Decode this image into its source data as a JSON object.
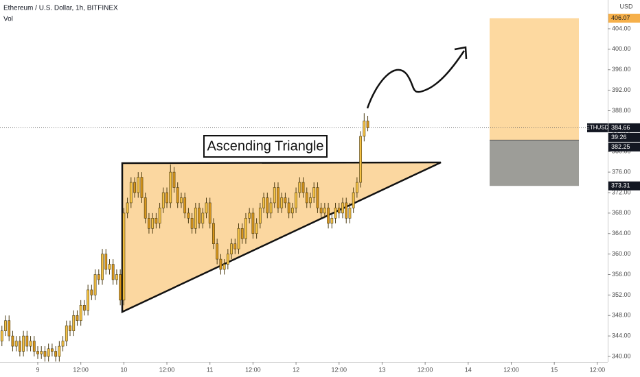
{
  "chart_data": {
    "type": "candlestick",
    "title": "Ethereum / U.S. Dollar, 1h, BITFINEX",
    "subtitle": "Vol",
    "currency": "USD",
    "annotation": "Ascending Triangle",
    "colors": {
      "up": "#f5c244",
      "down": "#d8961c",
      "wick": "#4a3a10"
    },
    "x": [
      -10,
      -9,
      -8,
      -7,
      -6,
      -5,
      -4,
      -3,
      -2,
      -1,
      0,
      1,
      2,
      3,
      4,
      5,
      6,
      7,
      8,
      9,
      10,
      11,
      12,
      13,
      14,
      15,
      16,
      17,
      18,
      19,
      20,
      21,
      22,
      23,
      24,
      25,
      26,
      27,
      28,
      29,
      30,
      31,
      32,
      33,
      34,
      35,
      36,
      37,
      38,
      39,
      40,
      41,
      42,
      43,
      44,
      45,
      46,
      47,
      48,
      49,
      50,
      51,
      52,
      53,
      54,
      55,
      56,
      57,
      58,
      59,
      60,
      61,
      62,
      63,
      64,
      65,
      66,
      67,
      68,
      69,
      70,
      71,
      72,
      73,
      74,
      75,
      76,
      77,
      78,
      79,
      80,
      81,
      82,
      83,
      84,
      85,
      86,
      87,
      88,
      89,
      90,
      91,
      92
    ],
    "open": [
      343,
      345,
      347,
      344,
      342,
      343,
      341,
      344,
      342,
      343,
      341,
      340.5,
      341,
      340,
      341.5,
      341,
      340,
      342,
      343,
      346,
      345,
      348,
      347,
      350,
      349,
      353,
      352,
      356,
      355,
      360,
      357,
      358,
      355,
      356,
      351,
      368,
      370,
      374,
      372,
      375,
      371,
      367,
      365,
      367,
      366,
      369,
      372,
      370,
      376,
      373,
      370,
      371,
      368,
      367,
      365,
      369,
      366,
      368,
      370,
      366,
      362,
      359,
      357,
      358,
      360,
      362,
      361,
      365,
      363,
      367,
      368,
      364,
      366,
      369,
      371,
      368,
      370,
      373,
      369,
      371,
      370,
      368,
      369,
      372,
      374,
      372,
      370,
      371,
      373,
      369,
      368,
      369,
      366,
      367,
      369,
      368,
      370,
      367,
      369,
      372,
      374,
      383,
      386
    ],
    "high": [
      346,
      348,
      348,
      345,
      344,
      344,
      345,
      345,
      344,
      344,
      342,
      342,
      342,
      342.5,
      342.5,
      342,
      343,
      344,
      347,
      347,
      349,
      349,
      351,
      351,
      354,
      354,
      357,
      357,
      361,
      361,
      359,
      359,
      357,
      357,
      369,
      371,
      375,
      375,
      376,
      376,
      372,
      368,
      368,
      368,
      370,
      373,
      373,
      377.5,
      377,
      374,
      372,
      372,
      369,
      368,
      370,
      370,
      369,
      371,
      371,
      367,
      363,
      360,
      359,
      361,
      363,
      363,
      366,
      366,
      368,
      369,
      369,
      367,
      370,
      372,
      372,
      371,
      374,
      374,
      372,
      372,
      371,
      370,
      373,
      375,
      375,
      373,
      372,
      374,
      374,
      370,
      370,
      370,
      368,
      370,
      370,
      371,
      371,
      370,
      373,
      375,
      384,
      387.5,
      387
    ],
    "low": [
      342,
      344,
      343,
      341,
      341,
      340,
      340,
      341,
      341,
      340,
      339.5,
      339.5,
      339,
      339,
      340,
      339,
      339,
      341,
      342,
      344,
      344,
      346,
      346,
      348,
      348,
      351,
      351,
      354,
      354,
      356,
      356,
      354,
      354,
      350,
      350,
      367,
      369,
      371,
      371,
      370,
      366,
      364,
      364,
      365,
      365,
      368,
      369,
      369,
      372,
      369,
      369,
      367,
      366,
      364,
      364,
      365,
      365,
      367,
      365,
      361,
      358,
      356,
      356,
      357,
      359,
      360,
      360,
      362,
      362,
      366,
      363,
      363,
      365,
      368,
      367,
      367,
      369,
      368,
      368,
      369,
      367,
      367,
      368,
      371,
      371,
      369,
      369,
      370,
      368,
      367,
      367,
      365,
      365,
      366,
      367,
      367,
      366,
      366,
      368,
      371,
      373,
      382,
      384
    ],
    "close": [
      345,
      347,
      344,
      342,
      343,
      341,
      344,
      342,
      343,
      341,
      340.5,
      341,
      340,
      341.5,
      341,
      340,
      342,
      343,
      346,
      345,
      348,
      347,
      350,
      349,
      353,
      352,
      356,
      355,
      360,
      357,
      358,
      355,
      356,
      351,
      368,
      370,
      374,
      372,
      375,
      371,
      367,
      365,
      367,
      366,
      369,
      372,
      370,
      376,
      373,
      370,
      371,
      368,
      367,
      365,
      369,
      366,
      368,
      370,
      366,
      362,
      359,
      357,
      358,
      360,
      362,
      361,
      365,
      363,
      367,
      368,
      364,
      366,
      369,
      371,
      368,
      370,
      373,
      369,
      371,
      370,
      368,
      369,
      372,
      374,
      372,
      370,
      371,
      373,
      369,
      368,
      369,
      366,
      367,
      369,
      368,
      370,
      367,
      369,
      372,
      374,
      383,
      386,
      384.66
    ],
    "xlim": [
      -10.53,
      158.9
    ],
    "xticks": [
      {
        "value": 0,
        "label": "9"
      },
      {
        "value": 12,
        "label": "12:00"
      },
      {
        "value": 24,
        "label": "10"
      },
      {
        "value": 36,
        "label": "12:00"
      },
      {
        "value": 48,
        "label": "11"
      },
      {
        "value": 60,
        "label": "12:00"
      },
      {
        "value": 72,
        "label": "12"
      },
      {
        "value": 84,
        "label": "12:00"
      },
      {
        "value": 96,
        "label": "13"
      },
      {
        "value": 108,
        "label": "12:00"
      },
      {
        "value": 120,
        "label": "14"
      },
      {
        "value": 132,
        "label": "12:00"
      },
      {
        "value": 144,
        "label": "15"
      },
      {
        "value": 156,
        "label": "12:00"
      }
    ],
    "ylim": [
      338.93,
      409.62
    ],
    "yticks": [
      {
        "value": 340,
        "label": "340.00"
      },
      {
        "value": 344,
        "label": "344.00"
      },
      {
        "value": 348,
        "label": "348.00"
      },
      {
        "value": 352,
        "label": "352.00"
      },
      {
        "value": 356,
        "label": "356.00"
      },
      {
        "value": 360,
        "label": "360.00"
      },
      {
        "value": 364,
        "label": "364.00"
      },
      {
        "value": 368,
        "label": "368.00"
      },
      {
        "value": 372,
        "label": "372.00"
      },
      {
        "value": 376,
        "label": "376.00"
      },
      {
        "value": 380,
        "label": "380.00"
      },
      {
        "value": 384,
        "label": "384.00"
      },
      {
        "value": 388,
        "label": "388.00"
      },
      {
        "value": 392,
        "label": "392.00"
      },
      {
        "value": 396,
        "label": "396.00"
      },
      {
        "value": 400,
        "label": "400.00"
      },
      {
        "value": 404,
        "label": "404.00"
      }
    ],
    "last_price": {
      "symbol": "ETHUSD",
      "value": 384.66,
      "countdown": "39:26"
    },
    "position": {
      "target": 406.07,
      "entry": 382.25,
      "stop": 373.31
    }
  }
}
